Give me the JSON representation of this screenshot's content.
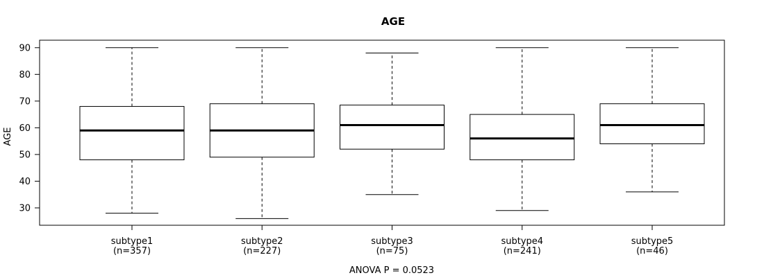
{
  "chart_data": {
    "type": "boxplot",
    "title": "AGE",
    "xlabel": "",
    "ylabel": "AGE",
    "annotation": "ANOVA P = 0.0523",
    "ylim": [
      23.5,
      92.8
    ],
    "yticks": [
      30,
      40,
      50,
      60,
      70,
      80,
      90
    ],
    "grid": false,
    "legend": "none",
    "categories": [
      "subtype1",
      "subtype2",
      "subtype3",
      "subtype4",
      "subtype5"
    ],
    "category_sublabels": [
      "(n=357)",
      "(n=227)",
      "(n=75)",
      "(n=241)",
      "(n=46)"
    ],
    "series": [
      {
        "name": "subtype1",
        "n": 357,
        "whisker_low": 28,
        "q1": 48,
        "median": 59,
        "q3": 68,
        "whisker_high": 90
      },
      {
        "name": "subtype2",
        "n": 227,
        "whisker_low": 26,
        "q1": 49,
        "median": 59,
        "q3": 69,
        "whisker_high": 90
      },
      {
        "name": "subtype3",
        "n": 75,
        "whisker_low": 35,
        "q1": 52,
        "median": 61,
        "q3": 68.5,
        "whisker_high": 88
      },
      {
        "name": "subtype4",
        "n": 241,
        "whisker_low": 29,
        "q1": 48,
        "median": 56,
        "q3": 65,
        "whisker_high": 90
      },
      {
        "name": "subtype5",
        "n": 46,
        "whisker_low": 36,
        "q1": 54,
        "median": 61,
        "q3": 69,
        "whisker_high": 90
      }
    ],
    "colors": {
      "line": "#000000",
      "median": "#000000",
      "box_fill": "#ffffff",
      "background": "#ffffff",
      "text": "#000000"
    }
  }
}
